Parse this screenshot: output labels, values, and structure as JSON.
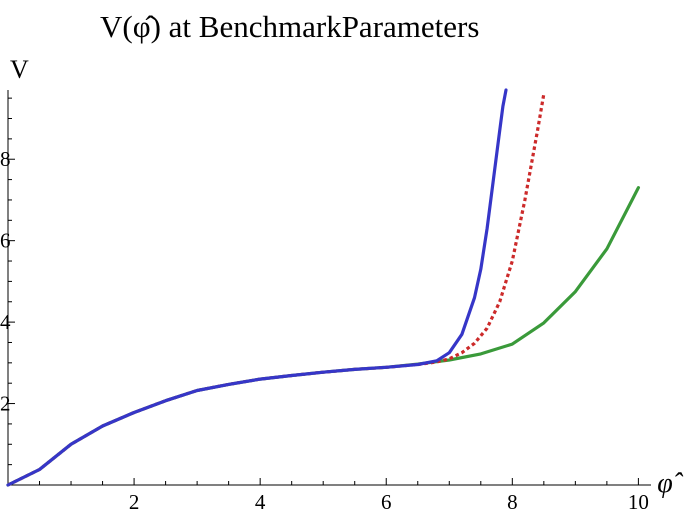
{
  "chart_data": {
    "type": "line",
    "title": "V(φ̂) at BenchmarkParameters",
    "xlabel": "φ̂",
    "ylabel": "V",
    "xlim": [
      0,
      10.2
    ],
    "ylim": [
      0,
      9.7
    ],
    "x_ticks": [
      2,
      4,
      6,
      8,
      10
    ],
    "y_ticks": [
      2,
      4,
      6,
      8
    ],
    "x_tick_labels": [
      "2",
      "4",
      "6",
      "8",
      "10"
    ],
    "y_tick_labels": [
      "2",
      "4",
      "6",
      "8"
    ],
    "grid": false,
    "legend": "none",
    "series": [
      {
        "color": "#3a9a3a",
        "style": "solid",
        "x": [
          0,
          0.5,
          1.0,
          1.5,
          2.0,
          2.5,
          3.0,
          3.5,
          4.0,
          4.5,
          5.0,
          5.5,
          6.0,
          6.5,
          7.0,
          7.5,
          8.0,
          8.5,
          9.0,
          9.5,
          10.0
        ],
        "y": [
          0,
          0.38,
          1.0,
          1.45,
          1.78,
          2.07,
          2.32,
          2.47,
          2.6,
          2.69,
          2.77,
          2.84,
          2.89,
          2.97,
          3.07,
          3.22,
          3.46,
          3.98,
          4.75,
          5.8,
          7.3
        ]
      },
      {
        "color": "#cc2a2a",
        "style": "dotted",
        "x": [
          0,
          0.5,
          1.0,
          1.5,
          2.0,
          2.5,
          3.0,
          3.5,
          4.0,
          4.5,
          5.0,
          5.5,
          6.0,
          6.5,
          6.8,
          7.0,
          7.2,
          7.4,
          7.6,
          7.8,
          8.0,
          8.2,
          8.4,
          8.5
        ],
        "y": [
          0,
          0.38,
          1.0,
          1.45,
          1.78,
          2.07,
          2.32,
          2.47,
          2.6,
          2.69,
          2.77,
          2.84,
          2.89,
          2.96,
          3.02,
          3.1,
          3.25,
          3.48,
          3.85,
          4.5,
          5.5,
          7.0,
          8.7,
          9.6
        ]
      },
      {
        "color": "#3636c8",
        "style": "solid",
        "x": [
          0,
          0.5,
          1.0,
          1.5,
          2.0,
          2.5,
          3.0,
          3.5,
          4.0,
          4.5,
          5.0,
          5.5,
          6.0,
          6.5,
          6.8,
          7.0,
          7.2,
          7.4,
          7.5,
          7.6,
          7.7,
          7.8,
          7.85,
          7.9
        ],
        "y": [
          0,
          0.38,
          1.0,
          1.45,
          1.78,
          2.07,
          2.32,
          2.47,
          2.6,
          2.69,
          2.77,
          2.84,
          2.89,
          2.96,
          3.05,
          3.25,
          3.7,
          4.6,
          5.3,
          6.3,
          7.5,
          8.7,
          9.3,
          9.7
        ]
      }
    ]
  }
}
